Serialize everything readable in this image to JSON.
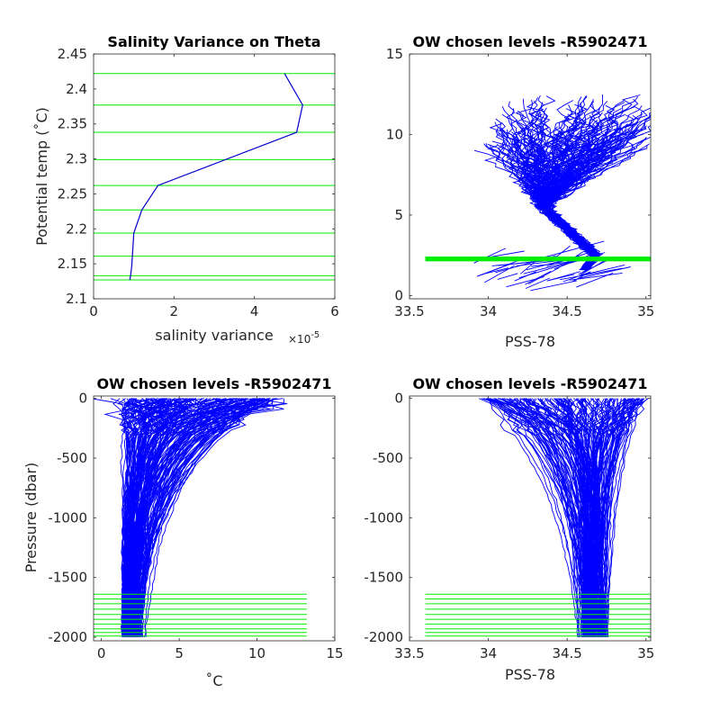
{
  "chart_data": [
    {
      "type": "line",
      "title": "Salinity Variance on Theta",
      "xlabel": "salinity variance",
      "x_exponent_label": "×10",
      "x_exponent": "-5",
      "ylabel": "Potential temp (˚C)",
      "xlim": [
        0,
        6e-05
      ],
      "ylim": [
        2.1,
        2.45
      ],
      "x_ticks": [
        0,
        2e-05,
        4e-05,
        6e-05
      ],
      "x_tick_labels": [
        "0",
        "2",
        "4",
        "6"
      ],
      "y_ticks": [
        2.1,
        2.15,
        2.2,
        2.25,
        2.3,
        2.35,
        2.4,
        2.45
      ],
      "y_tick_labels": [
        "2.1",
        "2.15",
        "2.2",
        "2.25",
        "2.3",
        "2.35",
        "2.4",
        "2.45"
      ],
      "series": [
        {
          "color": "#0000cc",
          "x": [
            4.75e-05,
            5.2e-05,
            5.05e-05,
            1.6e-05,
            1.2e-05,
            1e-05,
            9.5e-06,
            9.2e-06,
            9e-06
          ],
          "y": [
            2.422,
            2.377,
            2.338,
            2.262,
            2.227,
            2.194,
            2.147,
            2.133,
            2.127
          ]
        }
      ],
      "chosen_levels": {
        "color": "#00ee00",
        "theta": [
          2.422,
          2.377,
          2.338,
          2.299,
          2.262,
          2.227,
          2.194,
          2.161,
          2.133,
          2.127
        ]
      }
    },
    {
      "type": "line",
      "title": "OW chosen levels -R5902471",
      "xlabel": "PSS-78",
      "ylabel": "",
      "xlim": [
        33.5,
        35.03
      ],
      "ylim": [
        -0.2,
        15
      ],
      "x_ticks": [
        33.5,
        34,
        34.5,
        35
      ],
      "x_tick_labels": [
        "33.5",
        "34",
        "34.5",
        "35"
      ],
      "y_ticks": [
        0,
        5,
        10,
        15
      ],
      "y_tick_labels": [
        "0",
        "5",
        "10",
        "15"
      ],
      "profile_color": "#0000ff",
      "profile_count": 160,
      "chosen_band": {
        "color": "#00ee00",
        "theta_min": 2.127,
        "theta_max": 2.422,
        "x_range": [
          33.6,
          35.03
        ]
      }
    },
    {
      "type": "line",
      "title": "OW chosen levels -R5902471",
      "xlabel": "˚C",
      "ylabel": "Pressure (dbar)",
      "xlim": [
        -0.5,
        15
      ],
      "ylim": [
        -2030,
        20
      ],
      "x_ticks": [
        0,
        5,
        10,
        15
      ],
      "x_tick_labels": [
        "0",
        "5",
        "10",
        "15"
      ],
      "y_ticks": [
        0,
        -500,
        -1000,
        -1500,
        -2000
      ],
      "y_tick_labels": [
        "0",
        "-500",
        "-1000",
        "-1500",
        "-2000"
      ],
      "profile_color": "#0000ff",
      "profile_count": 160,
      "chosen_levels": {
        "color": "#00ee00",
        "pressure": [
          -1640,
          -1680,
          -1720,
          -1765,
          -1810,
          -1850,
          -1890,
          -1930,
          -1960,
          -1990
        ],
        "x_range": [
          -0.5,
          13.2
        ]
      }
    },
    {
      "type": "line",
      "title": "OW chosen levels -R5902471",
      "xlabel": "PSS-78",
      "ylabel": "",
      "xlim": [
        33.5,
        35.03
      ],
      "ylim": [
        -2030,
        20
      ],
      "x_ticks": [
        33.5,
        34,
        34.5,
        35
      ],
      "x_tick_labels": [
        "33.5",
        "34",
        "34.5",
        "35"
      ],
      "y_ticks": [
        0,
        -500,
        -1000,
        -1500,
        -2000
      ],
      "y_tick_labels": [
        "0",
        "-500",
        "-1000",
        "-1500",
        "-2000"
      ],
      "profile_color": "#0000ff",
      "profile_count": 160,
      "chosen_levels": {
        "color": "#00ee00",
        "pressure": [
          -1640,
          -1680,
          -1720,
          -1765,
          -1810,
          -1850,
          -1890,
          -1930,
          -1960,
          -1990
        ],
        "x_range": [
          33.6,
          35.03
        ]
      }
    }
  ]
}
